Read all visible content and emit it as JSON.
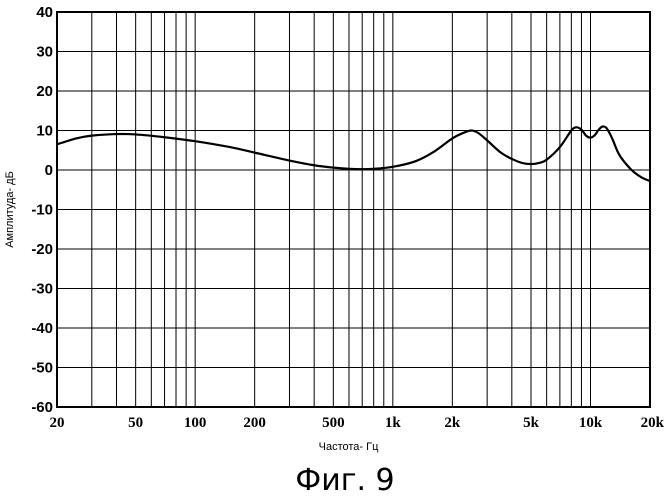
{
  "chart_data": {
    "type": "line",
    "title": "",
    "xlabel": "Частота- Гц",
    "ylabel": "Амплитуда- дБ",
    "x_scale": "log",
    "xlim": [
      20,
      20000
    ],
    "ylim": [
      -60,
      40
    ],
    "x_ticks": [
      {
        "value": 20,
        "label": "20"
      },
      {
        "value": 50,
        "label": "50"
      },
      {
        "value": 100,
        "label": "100"
      },
      {
        "value": 200,
        "label": "200"
      },
      {
        "value": 500,
        "label": "500"
      },
      {
        "value": 1000,
        "label": "1k"
      },
      {
        "value": 2000,
        "label": "2k"
      },
      {
        "value": 5000,
        "label": "5k"
      },
      {
        "value": 10000,
        "label": "10k"
      },
      {
        "value": 20000,
        "label": "20k"
      }
    ],
    "y_ticks": [
      {
        "value": 40,
        "label": "40"
      },
      {
        "value": 30,
        "label": "30"
      },
      {
        "value": 20,
        "label": "20"
      },
      {
        "value": 10,
        "label": "10"
      },
      {
        "value": 0,
        "label": "0"
      },
      {
        "value": -10,
        "label": "-10"
      },
      {
        "value": -20,
        "label": "-20"
      },
      {
        "value": -30,
        "label": "-30"
      },
      {
        "value": -40,
        "label": "-40"
      },
      {
        "value": -50,
        "label": "-50"
      },
      {
        "value": -60,
        "label": "-60"
      }
    ],
    "grid": true,
    "series": [
      {
        "color": "#000000",
        "x": [
          20,
          25,
          30,
          40,
          50,
          70,
          100,
          150,
          200,
          300,
          400,
          500,
          600,
          700,
          800,
          1000,
          1300,
          1600,
          2000,
          2300,
          2500,
          2700,
          3000,
          3500,
          4000,
          4500,
          5000,
          5500,
          6000,
          7000,
          8000,
          8500,
          9000,
          9500,
          10000,
          10500,
          11000,
          11500,
          12000,
          12500,
          13000,
          14000,
          16000,
          18000,
          20000
        ],
        "y": [
          6.5,
          8.0,
          8.7,
          9.1,
          9.0,
          8.3,
          7.3,
          5.8,
          4.4,
          2.4,
          1.2,
          0.6,
          0.3,
          0.2,
          0.3,
          0.8,
          2.2,
          4.5,
          8.0,
          9.5,
          10.0,
          9.4,
          7.5,
          4.5,
          2.8,
          1.8,
          1.5,
          1.8,
          2.6,
          5.8,
          10.0,
          10.8,
          10.2,
          8.7,
          8.2,
          8.8,
          10.2,
          11.0,
          10.7,
          9.3,
          7.5,
          3.8,
          0.2,
          -1.8,
          -2.8
        ]
      }
    ]
  },
  "figure_caption": "Фиг. 9"
}
